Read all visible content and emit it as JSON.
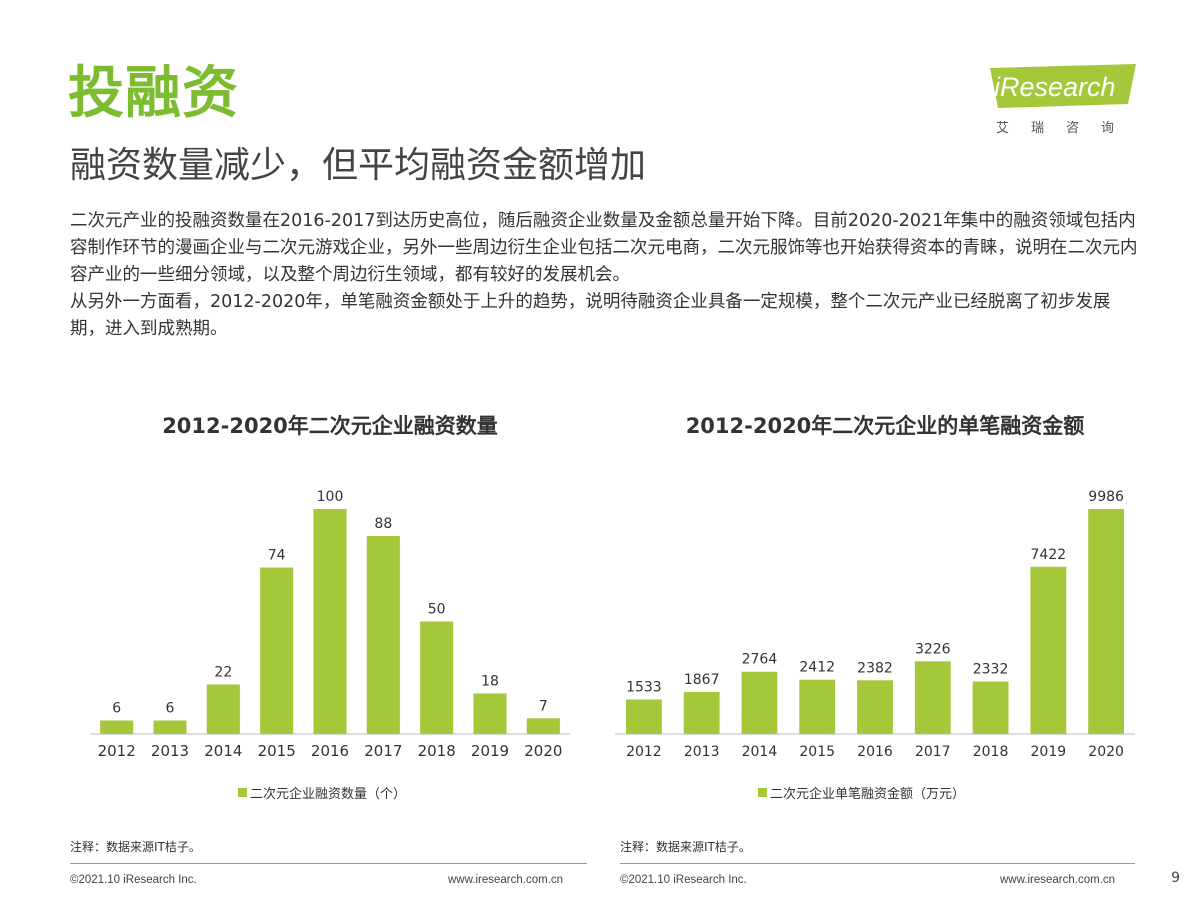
{
  "page": {
    "title": "投融资",
    "subtitle": "融资数量减少，但平均融资金额增加",
    "paragraph1": "二次元产业的投融资数量在2016-2017到达历史高位，随后融资企业数量及金额总量开始下降。目前2020-2021年集中的融资领域包括内容制作环节的漫画企业与二次元游戏企业，另外一些周边衍生企业包括二次元电商，二次元服饰等也开始获得资本的青睐，说明在二次元内容产业的一些细分领域，以及整个周边衍生领域，都有较好的发展机会。",
    "paragraph2": "从另外一方面看，2012-2020年，单笔融资金额处于上升的趋势，说明待融资企业具备一定规模，整个二次元产业已经脱离了初步发展期，进入到成熟期。",
    "page_number": "9"
  },
  "logo": {
    "word": "iResearch",
    "sub": "艾瑞咨询",
    "color": "#a5c83a"
  },
  "colors": {
    "accent": "#7dbb31",
    "bar": "#a5c83a"
  },
  "left": {
    "note": "注释：数据来源IT桔子。",
    "footer_left": "©2021.10 iResearch Inc.",
    "footer_right": "www.iresearch.com.cn"
  },
  "right": {
    "note": "注释：数据来源IT桔子。",
    "footer_left": "©2021.10 iResearch Inc.",
    "footer_right": "www.iresearch.com.cn"
  },
  "chart_data": [
    {
      "type": "bar",
      "title": "2012-2020年二次元企业融资数量",
      "categories": [
        "2012",
        "2013",
        "2014",
        "2015",
        "2016",
        "2017",
        "2018",
        "2019",
        "2020"
      ],
      "series": [
        {
          "name": "二次元企业融资数量（个）",
          "values": [
            6,
            6,
            22,
            74,
            100,
            88,
            50,
            18,
            7
          ]
        }
      ],
      "ylim": [
        0,
        100
      ],
      "grid": false,
      "legend": "bottom"
    },
    {
      "type": "bar",
      "title": "2012-2020年二次元企业的单笔融资金额",
      "categories": [
        "2012",
        "2013",
        "2014",
        "2015",
        "2016",
        "2017",
        "2018",
        "2019",
        "2020"
      ],
      "series": [
        {
          "name": "二次元企业单笔融资金额（万元）",
          "values": [
            1533,
            1867,
            2764,
            2412,
            2382,
            3226,
            2332,
            7422,
            9986
          ]
        }
      ],
      "ylim": [
        0,
        9986
      ],
      "grid": false,
      "legend": "bottom"
    }
  ]
}
